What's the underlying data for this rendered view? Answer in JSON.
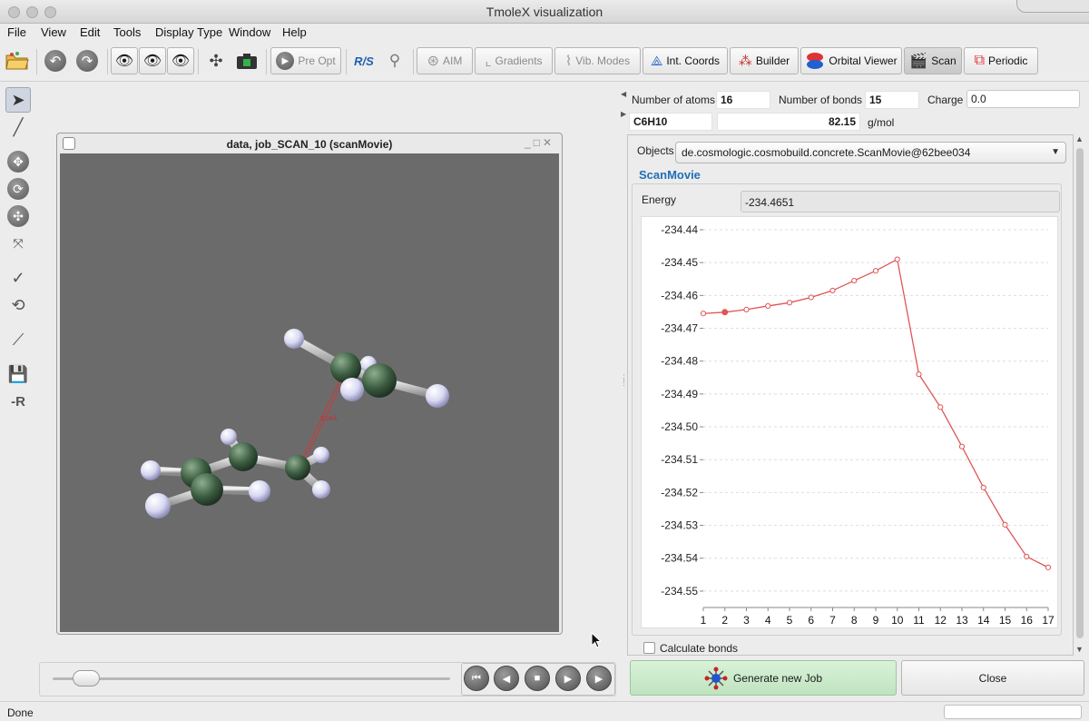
{
  "window": {
    "title": "TmoleX visualization"
  },
  "menu": [
    "File",
    "View",
    "Edit",
    "Tools",
    "Display Type",
    "Window",
    "Help"
  ],
  "toolbar": {
    "pre_opt": "Pre Opt",
    "rs": "R/S",
    "aim": "AIM",
    "gradients": "Gradients",
    "vib_modes": "Vib. Modes",
    "int_coords": "Int. Coords",
    "builder": "Builder",
    "orbital_viewer": "Orbital Viewer",
    "scan": "Scan",
    "periodic": "Periodic"
  },
  "left_tools": {
    "r_label": "-R"
  },
  "molecule_window": {
    "title": "data, job_SCAN_10 (scanMovie)",
    "measure_label": "3.04Å"
  },
  "info": {
    "num_atoms_label": "Number of atoms",
    "num_atoms": "16",
    "num_bonds_label": "Number of bonds",
    "num_bonds": "15",
    "charge_label": "Charge",
    "charge": "0.0",
    "formula": "C6H10",
    "mass": "82.15",
    "mass_unit": "g/mol"
  },
  "panel": {
    "objects_label": "Objects",
    "objects_value": "de.cosmologic.cosmobuild.concrete.ScanMovie@62bee034",
    "section_title": "ScanMovie",
    "energy_label": "Energy",
    "energy_value": "-234.4651",
    "calculate_bonds": "Calculate bonds"
  },
  "buttons": {
    "generate": "Generate new Job",
    "close": "Close"
  },
  "status": {
    "text": "Done"
  },
  "colors": {
    "line": "#e05555",
    "section_title": "#1f6fb8",
    "generate_bg": "#cdebcd"
  },
  "chart_data": {
    "type": "line",
    "title": "",
    "xlabel": "",
    "ylabel": "",
    "x": [
      1,
      2,
      3,
      4,
      5,
      6,
      7,
      8,
      9,
      10,
      11,
      12,
      13,
      14,
      15,
      16,
      17
    ],
    "series": [
      {
        "values": [
          -234.4655,
          -234.4651,
          -234.4643,
          -234.4632,
          -234.4622,
          -234.4606,
          -234.4585,
          -234.4555,
          -234.4525,
          -234.449,
          -234.484,
          -234.494,
          -234.506,
          -234.5185,
          -234.5298,
          -234.5395,
          -234.5428
        ]
      }
    ],
    "ylim": [
      -234.555,
      -234.44
    ],
    "yticks": [
      "-234.44",
      "-234.45",
      "-234.46",
      "-234.47",
      "-234.48",
      "-234.49",
      "-234.50",
      "-234.51",
      "-234.52",
      "-234.53",
      "-234.54",
      "-234.55"
    ],
    "xticks": [
      "1",
      "2",
      "3",
      "4",
      "5",
      "6",
      "7",
      "8",
      "9",
      "10",
      "11",
      "12",
      "13",
      "14",
      "15",
      "16",
      "17"
    ],
    "grid": true,
    "current_index": 2
  }
}
